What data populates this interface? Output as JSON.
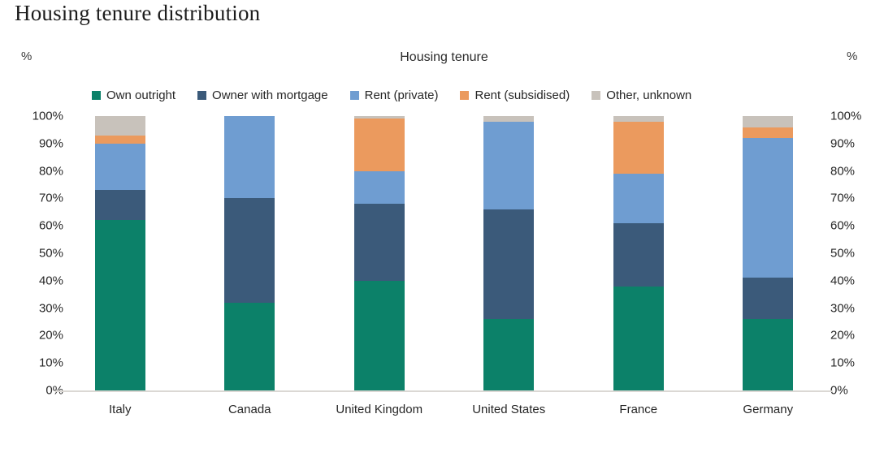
{
  "page": {
    "title": "Housing tenure distribution"
  },
  "chart": {
    "title": "Housing tenure",
    "left_axis_unit": "%",
    "right_axis_unit": "%"
  },
  "chart_data": {
    "type": "bar",
    "stacked": true,
    "title": "Housing tenure",
    "categories": [
      "Italy",
      "Canada",
      "United Kingdom",
      "United States",
      "France",
      "Germany"
    ],
    "series": [
      {
        "name": "Own outright",
        "color": "#0c8169",
        "values": [
          62,
          32,
          40,
          26,
          38,
          26
        ]
      },
      {
        "name": "Owner with mortgage",
        "color": "#3b5a7a",
        "values": [
          11,
          38,
          28,
          40,
          23,
          15
        ]
      },
      {
        "name": "Rent (private)",
        "color": "#6f9dd1",
        "values": [
          17,
          30,
          12,
          32,
          18,
          51
        ]
      },
      {
        "name": "Rent (subsidised)",
        "color": "#eb9a5e",
        "values": [
          3,
          0,
          19,
          0,
          19,
          4
        ]
      },
      {
        "name": "Other, unknown",
        "color": "#c8c2bb",
        "values": [
          7,
          0,
          1,
          2,
          2,
          4
        ]
      }
    ],
    "xlabel": "",
    "ylabel": "%",
    "ylim": [
      0,
      100
    ],
    "yticks": [
      0,
      10,
      20,
      30,
      40,
      50,
      60,
      70,
      80,
      90,
      100
    ],
    "ytick_suffix": "%",
    "legend_position": "top",
    "grid": false,
    "axis_line_color": "#dbd8d4"
  }
}
